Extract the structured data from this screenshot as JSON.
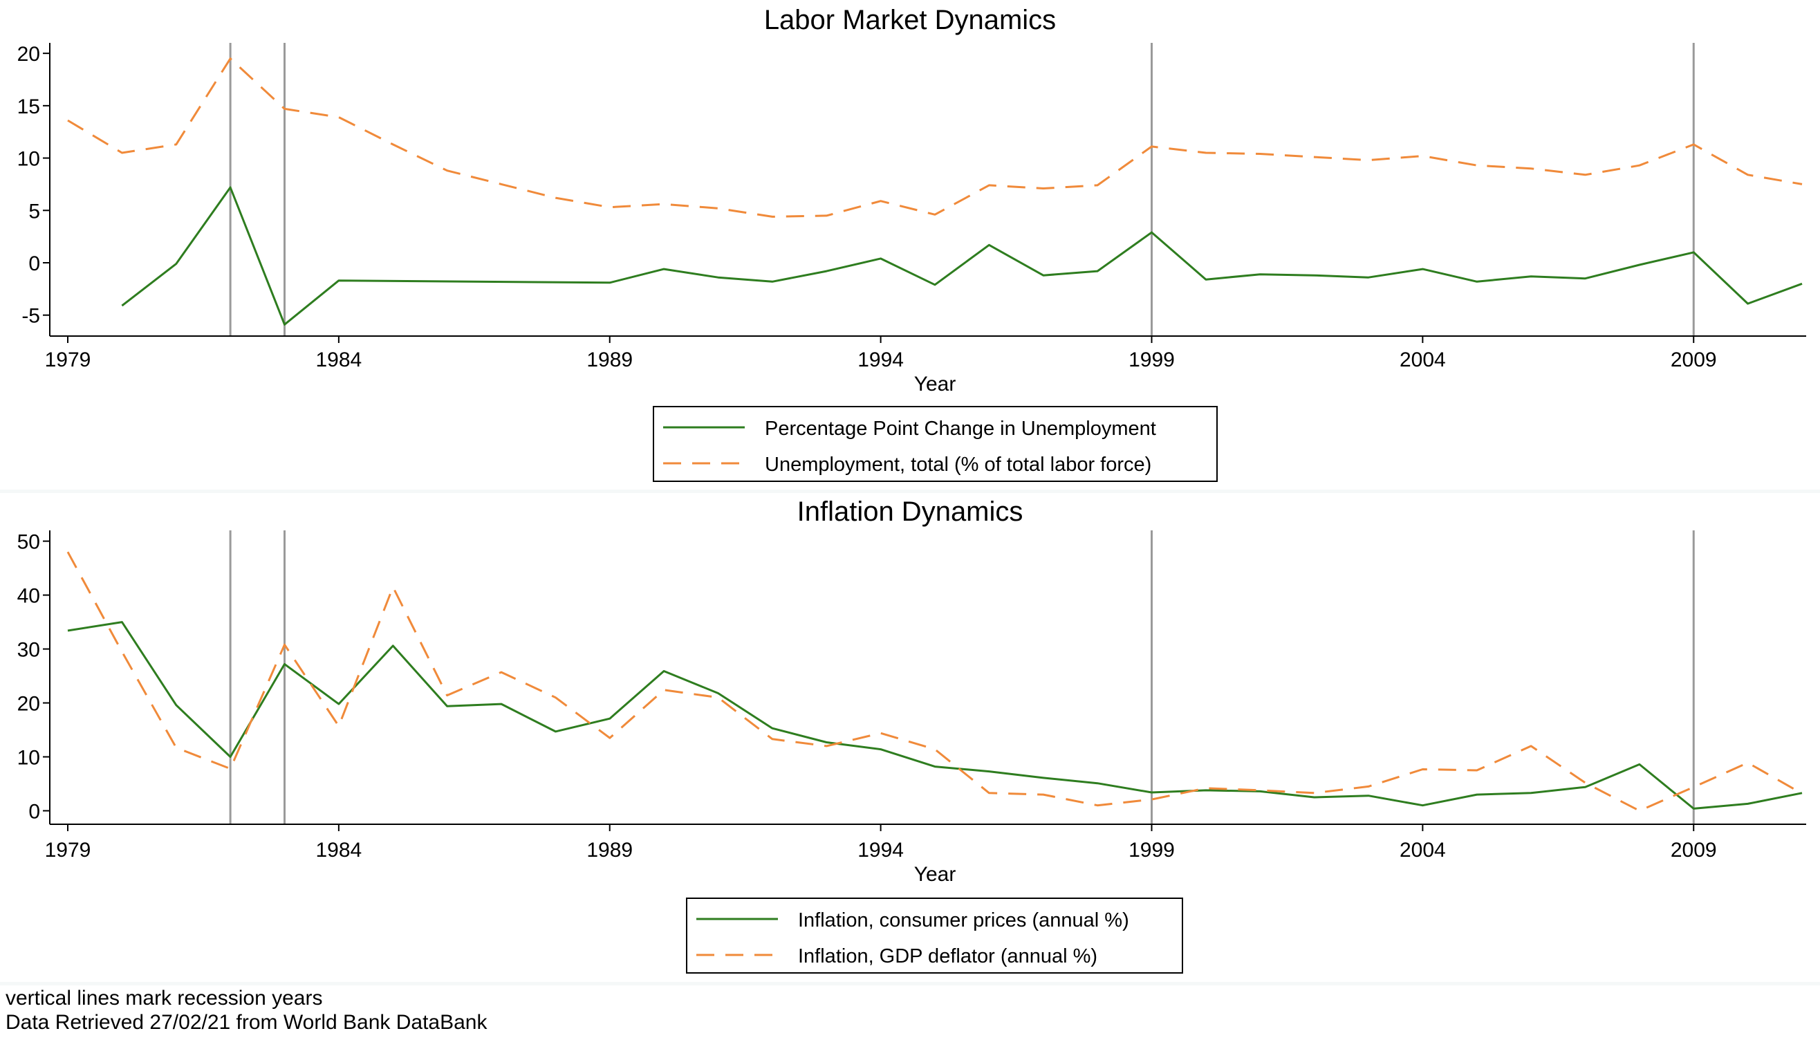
{
  "note": {
    "line1": "vertical lines mark recession years",
    "line2": "Data Retrieved 27/02/21 from World Bank DataBank"
  },
  "colors": {
    "green": "#2e7d1f",
    "orange": "#f08a3a",
    "recession": "#9a9a9a"
  },
  "chart_data": [
    {
      "type": "line",
      "title": "Labor Market Dynamics",
      "xlabel": "Year",
      "ylabel": "",
      "xlim": [
        1979,
        2011
      ],
      "ylim": [
        -7,
        21
      ],
      "xticks": [
        1979,
        1984,
        1989,
        1994,
        1999,
        2004,
        2009
      ],
      "yticks": [
        -5,
        0,
        5,
        10,
        15,
        20
      ],
      "recession_years": [
        1982,
        1983,
        1999,
        2009
      ],
      "legend_position": "bottom",
      "series": [
        {
          "name": "Percentage Point Change in Unemployment",
          "style": "solid",
          "color": "#2e7d1f",
          "x": [
            1980,
            1981,
            1982,
            1983,
            1984,
            1989,
            1990,
            1991,
            1992,
            1993,
            1994,
            1995,
            1996,
            1997,
            1998,
            1999,
            2000,
            2001,
            2002,
            2003,
            2004,
            2005,
            2006,
            2007,
            2008,
            2009,
            2010,
            2011
          ],
          "y": [
            -4.1,
            -0.1,
            7.2,
            -5.9,
            -1.7,
            -1.9,
            -0.6,
            -1.4,
            -1.8,
            -0.8,
            0.4,
            -2.1,
            1.7,
            -1.2,
            -0.8,
            2.9,
            -1.6,
            -1.1,
            -1.2,
            -1.4,
            -0.6,
            -1.8,
            -1.3,
            -1.5,
            -0.2,
            1.0,
            -3.9,
            -2.0
          ]
        },
        {
          "name": "Unemployment, total (% of total labor force)",
          "style": "dashed",
          "color": "#f08a3a",
          "x": [
            1979,
            1980,
            1981,
            1982,
            1983,
            1984,
            1985,
            1986,
            1987,
            1988,
            1989,
            1990,
            1991,
            1992,
            1993,
            1994,
            1995,
            1996,
            1997,
            1998,
            1999,
            2000,
            2001,
            2002,
            2003,
            2004,
            2005,
            2006,
            2007,
            2008,
            2009,
            2010,
            2011
          ],
          "y": [
            13.6,
            10.5,
            11.3,
            19.5,
            14.7,
            13.9,
            11.3,
            8.8,
            7.5,
            6.2,
            5.3,
            5.6,
            5.2,
            4.4,
            4.5,
            5.9,
            4.6,
            7.4,
            7.1,
            7.4,
            11.1,
            10.5,
            10.4,
            10.1,
            9.8,
            10.2,
            9.3,
            9.0,
            8.4,
            9.3,
            11.3,
            8.4,
            7.5
          ]
        }
      ]
    },
    {
      "type": "line",
      "title": "Inflation Dynamics",
      "xlabel": "Year",
      "ylabel": "",
      "xlim": [
        1979,
        2011
      ],
      "ylim": [
        -2.5,
        52
      ],
      "xticks": [
        1979,
        1984,
        1989,
        1994,
        1999,
        2004,
        2009
      ],
      "yticks": [
        0,
        10,
        20,
        30,
        40,
        50
      ],
      "recession_years": [
        1982,
        1983,
        1999,
        2009
      ],
      "legend_position": "bottom",
      "series": [
        {
          "name": "Inflation, consumer prices (annual %)",
          "style": "solid",
          "color": "#2e7d1f",
          "x": [
            1979,
            1980,
            1981,
            1982,
            1983,
            1984,
            1985,
            1986,
            1987,
            1988,
            1989,
            1990,
            1991,
            1992,
            1993,
            1994,
            1995,
            1996,
            1997,
            1998,
            1999,
            2000,
            2001,
            2002,
            2003,
            2004,
            2005,
            2006,
            2007,
            2008,
            2009,
            2010,
            2011
          ],
          "y": [
            33.4,
            35.0,
            19.6,
            10.0,
            27.2,
            19.8,
            30.6,
            19.4,
            19.8,
            14.7,
            17.1,
            25.9,
            21.8,
            15.3,
            12.7,
            11.4,
            8.2,
            7.3,
            6.1,
            5.1,
            3.4,
            3.8,
            3.6,
            2.5,
            2.8,
            1.0,
            3.0,
            3.3,
            4.4,
            8.6,
            0.4,
            1.3,
            3.3
          ]
        },
        {
          "name": "Inflation, GDP deflator (annual %)",
          "style": "dashed",
          "color": "#f08a3a",
          "x": [
            1979,
            1980,
            1981,
            1982,
            1983,
            1984,
            1985,
            1986,
            1987,
            1988,
            1989,
            1990,
            1991,
            1992,
            1993,
            1994,
            1995,
            1996,
            1997,
            1998,
            1999,
            2000,
            2001,
            2002,
            2003,
            2004,
            2005,
            2006,
            2007,
            2008,
            2009,
            2010,
            2011
          ],
          "y": [
            48.0,
            29.5,
            11.7,
            7.8,
            30.8,
            15.7,
            41.5,
            21.4,
            25.7,
            21.0,
            13.5,
            22.4,
            21.0,
            13.3,
            12.0,
            14.4,
            11.4,
            3.3,
            3.0,
            1.0,
            2.1,
            4.2,
            3.8,
            3.3,
            4.5,
            7.7,
            7.5,
            12.0,
            5.2,
            0.0,
            4.4,
            8.9,
            3.2
          ]
        }
      ]
    }
  ]
}
